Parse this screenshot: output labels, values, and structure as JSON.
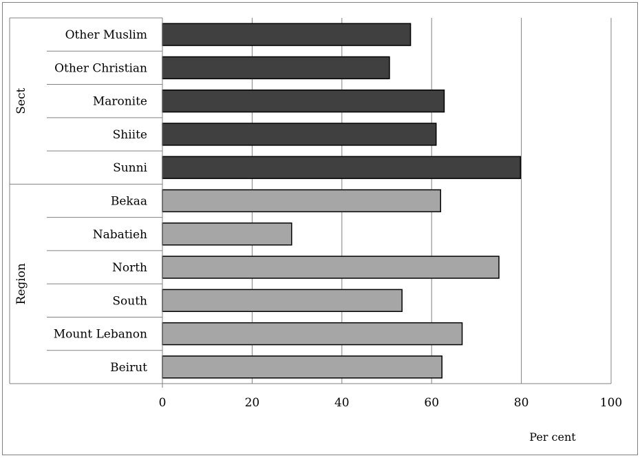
{
  "chart_data": {
    "type": "bar",
    "orientation": "horizontal",
    "xlabel": "Per cent",
    "ylabel": "",
    "xlim": [
      0,
      100
    ],
    "xticks": [
      0,
      20,
      40,
      60,
      80,
      100
    ],
    "grid": true,
    "groups": [
      {
        "name": "Sect",
        "color": "#404040",
        "items": [
          {
            "label": "Other Muslim",
            "value": 55.3
          },
          {
            "label": "Other Christian",
            "value": 50.6
          },
          {
            "label": "Maronite",
            "value": 62.8
          },
          {
            "label": "Shiite",
            "value": 61.0
          },
          {
            "label": "Sunni",
            "value": 79.8
          }
        ]
      },
      {
        "name": "Region",
        "color": "#a6a6a6",
        "items": [
          {
            "label": "Bekaa",
            "value": 62.0
          },
          {
            "label": "Nabatieh",
            "value": 28.8
          },
          {
            "label": "North",
            "value": 75.0
          },
          {
            "label": "South",
            "value": 53.4
          },
          {
            "label": "Mount Lebanon",
            "value": 66.8
          },
          {
            "label": "Beirut",
            "value": 62.3
          }
        ]
      }
    ]
  }
}
